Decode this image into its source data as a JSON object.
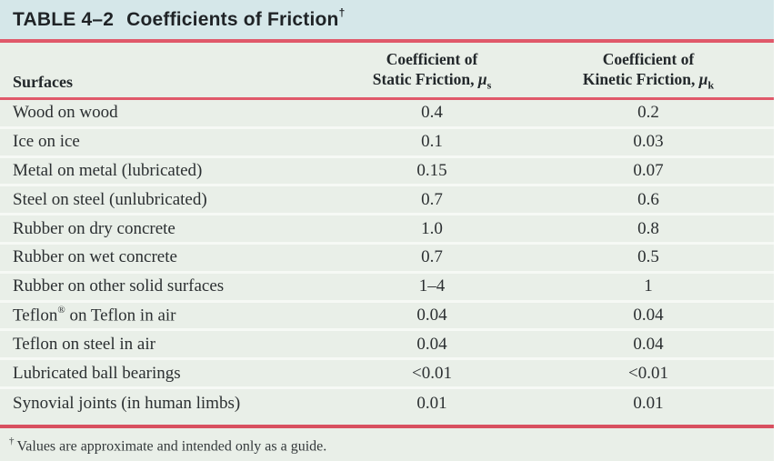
{
  "table": {
    "title": {
      "label": "TABLE 4–2",
      "text": "Coefficients of Friction",
      "dagger": "†"
    },
    "columns": {
      "surfaces": "Surfaces",
      "static": {
        "line1": "Coefficient of",
        "line2_prefix": "Static Friction, ",
        "symbol": "μ",
        "subscript": "s"
      },
      "kinetic": {
        "line1": "Coefficient of",
        "line2_prefix": "Kinetic Friction, ",
        "symbol": "μ",
        "subscript": "k"
      }
    },
    "rows": [
      {
        "surface": "Wood on wood",
        "static": "0.4",
        "kinetic": "0.2"
      },
      {
        "surface": "Ice on ice",
        "static": "0.1",
        "kinetic": "0.03"
      },
      {
        "surface": "Metal on metal (lubricated)",
        "static": "0.15",
        "kinetic": "0.07"
      },
      {
        "surface": "Steel on steel (unlubricated)",
        "static": "0.7",
        "kinetic": "0.6"
      },
      {
        "surface": "Rubber on dry concrete",
        "static": "1.0",
        "kinetic": "0.8"
      },
      {
        "surface": "Rubber on wet concrete",
        "static": "0.7",
        "kinetic": "0.5"
      },
      {
        "surface": "Rubber on other solid surfaces",
        "static": "1–4",
        "kinetic": "1"
      },
      {
        "surface": "Teflon® on Teflon in air",
        "static": "0.04",
        "kinetic": "0.04"
      },
      {
        "surface": "Teflon on steel in air",
        "static": "0.04",
        "kinetic": "0.04"
      },
      {
        "surface": "Lubricated ball bearings",
        "static": "<0.01",
        "kinetic": "<0.01"
      },
      {
        "surface": "Synovial joints (in human limbs)",
        "static": "0.01",
        "kinetic": "0.01"
      }
    ],
    "footnote": {
      "marker": "†",
      "text": "Values are approximate and intended only as a guide."
    }
  },
  "colors": {
    "title_band": "#d5e7e9",
    "body_bg": "#e9efe8",
    "rule_red": "#e0596a",
    "row_separator": "#f6f9f5",
    "text": "#2b2f31"
  }
}
